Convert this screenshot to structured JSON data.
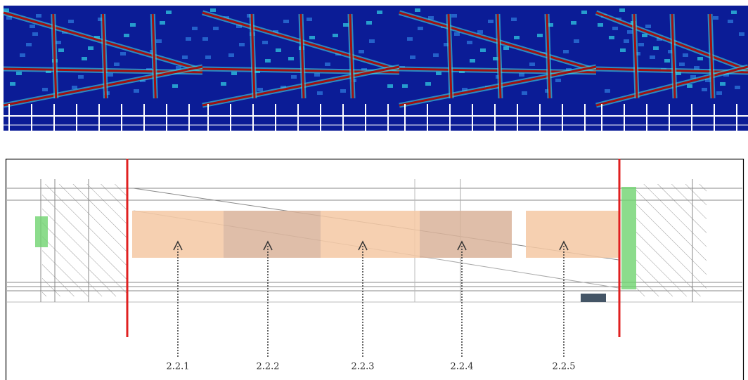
{
  "sections": [
    {
      "label": "2.2.1"
    },
    {
      "label": "2.2.2"
    },
    {
      "label": "2.2.3"
    },
    {
      "label": "2.2.4"
    },
    {
      "label": "2.2.5"
    }
  ]
}
